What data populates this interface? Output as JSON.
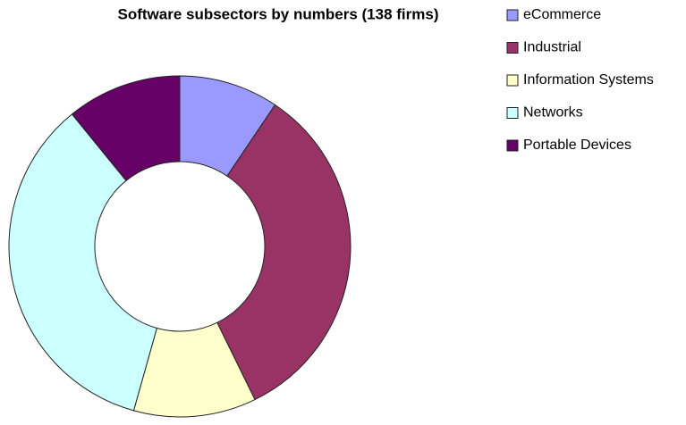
{
  "chart_data": {
    "type": "donut",
    "title": "Software subsectors by numbers (138 firms)",
    "categories": [
      "eCommerce",
      "Industrial",
      "Information Systems",
      "Networks",
      "Portable Devices"
    ],
    "values": [
      13,
      46,
      16,
      48,
      15
    ],
    "colors": [
      "#9999ff",
      "#993366",
      "#ffffcc",
      "#ccffff",
      "#660066"
    ],
    "legend": "right"
  }
}
